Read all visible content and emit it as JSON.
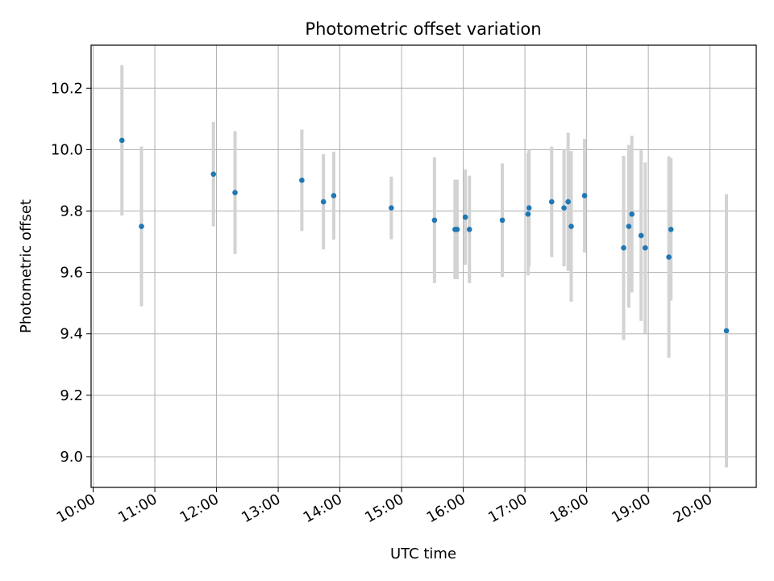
{
  "chart_data": {
    "type": "scatter",
    "title": "Photometric offset variation",
    "xlabel": "UTC time",
    "ylabel": "Photometric offset",
    "xlim": [
      "09:58",
      "20:45"
    ],
    "ylim": [
      8.9,
      10.34
    ],
    "grid": true,
    "x_ticks": [
      "10:00",
      "11:00",
      "12:00",
      "13:00",
      "14:00",
      "15:00",
      "16:00",
      "17:00",
      "18:00",
      "19:00",
      "20:00"
    ],
    "y_ticks": [
      "9.0",
      "9.2",
      "9.4",
      "9.6",
      "9.8",
      "10.0",
      "10.2"
    ],
    "colors": {
      "points": "#1f77b4",
      "errorbars": "#d3d3d3",
      "grid": "#b0b0b0"
    },
    "points": [
      {
        "x": "10:28",
        "y": 10.03,
        "err": 0.245
      },
      {
        "x": "10:47",
        "y": 9.75,
        "err": 0.26
      },
      {
        "x": "11:57",
        "y": 9.92,
        "err": 0.17
      },
      {
        "x": "12:18",
        "y": 9.86,
        "err": 0.2
      },
      {
        "x": "13:23",
        "y": 9.9,
        "err": 0.165
      },
      {
        "x": "13:44",
        "y": 9.83,
        "err": 0.155
      },
      {
        "x": "13:54",
        "y": 9.85,
        "err": 0.143
      },
      {
        "x": "14:50",
        "y": 9.81,
        "err": 0.102
      },
      {
        "x": "15:32",
        "y": 9.77,
        "err": 0.205
      },
      {
        "x": "15:52",
        "y": 9.74,
        "err": 0.162
      },
      {
        "x": "15:54",
        "y": 9.74,
        "err": 0.162
      },
      {
        "x": "16:02",
        "y": 9.78,
        "err": 0.155
      },
      {
        "x": "16:06",
        "y": 9.74,
        "err": 0.175
      },
      {
        "x": "16:38",
        "y": 9.77,
        "err": 0.185
      },
      {
        "x": "17:03",
        "y": 9.79,
        "err": 0.2
      },
      {
        "x": "17:04",
        "y": 9.81,
        "err": 0.19
      },
      {
        "x": "17:26",
        "y": 9.83,
        "err": 0.18
      },
      {
        "x": "17:38",
        "y": 9.81,
        "err": 0.19
      },
      {
        "x": "17:42",
        "y": 9.83,
        "err": 0.225
      },
      {
        "x": "17:45",
        "y": 9.75,
        "err": 0.245
      },
      {
        "x": "17:58",
        "y": 9.85,
        "err": 0.185
      },
      {
        "x": "18:36",
        "y": 9.68,
        "err": 0.3
      },
      {
        "x": "18:41",
        "y": 9.75,
        "err": 0.265
      },
      {
        "x": "18:44",
        "y": 9.79,
        "err": 0.255
      },
      {
        "x": "18:53",
        "y": 9.72,
        "err": 0.278
      },
      {
        "x": "18:57",
        "y": 9.68,
        "err": 0.278
      },
      {
        "x": "19:20",
        "y": 9.65,
        "err": 0.328
      },
      {
        "x": "19:22",
        "y": 9.74,
        "err": 0.232
      },
      {
        "x": "20:16",
        "y": 9.41,
        "err": 0.445
      }
    ]
  }
}
